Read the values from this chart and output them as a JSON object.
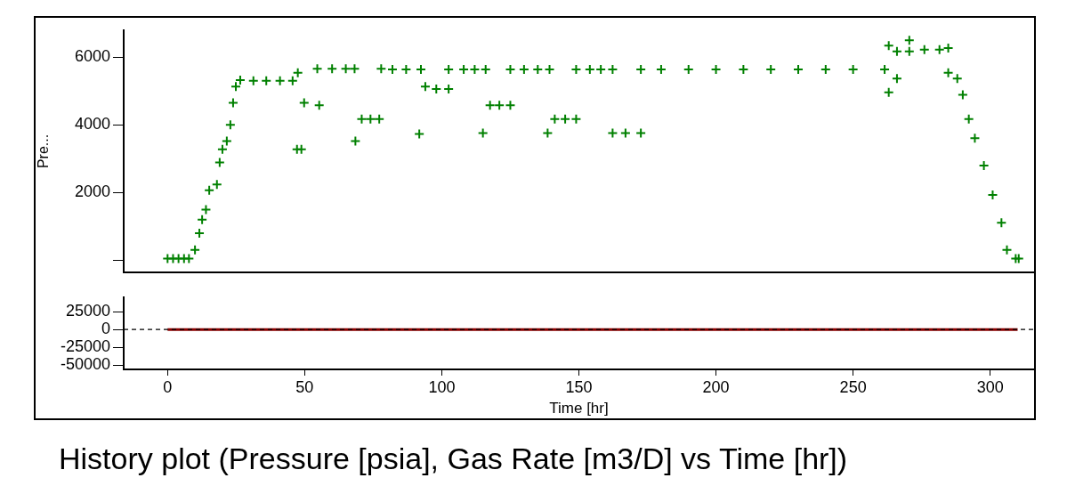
{
  "chart_data": [
    {
      "type": "scatter",
      "ylabel": "Pre...",
      "xlim": [
        -16,
        316
      ],
      "ylim": [
        -360,
        6800
      ],
      "yticks": [
        {
          "value": 0,
          "label": null
        },
        2000,
        4000,
        6000
      ],
      "tick_labels": "y",
      "grid": false,
      "legend": false,
      "marker": "cross",
      "series": [
        {
          "color": "#008000",
          "x": [
            0,
            2,
            4,
            6,
            7.8,
            10,
            11.6,
            12.6,
            14,
            15.2,
            18,
            19,
            20,
            21.6,
            22.9,
            23.9,
            24.9,
            26.5,
            31.3,
            36,
            41,
            45.6,
            47.5,
            47.2,
            48.8,
            49.8,
            55.3,
            54.6,
            60,
            65,
            68.2,
            68.5,
            70.8,
            74,
            77.2,
            77.9,
            82,
            87,
            92.4,
            91.8,
            94,
            98,
            102.5,
            102.5,
            108,
            112,
            116,
            115,
            117.6,
            121,
            125,
            125,
            130,
            135,
            139.3,
            138.6,
            141.2,
            145,
            149,
            149,
            154,
            158,
            162.3,
            162.3,
            167,
            172.6,
            172.6,
            180,
            190,
            200,
            210,
            220,
            230,
            240,
            250,
            261.5,
            263,
            263,
            266,
            266,
            270.5,
            270.5,
            276,
            281.5,
            284.7,
            284.7,
            288,
            290,
            292.2,
            294.4,
            297.7,
            300.9,
            304.1,
            306.1,
            309.3,
            310.4
          ],
          "values": [
            50,
            50,
            50,
            50,
            50,
            310,
            800,
            1200,
            1500,
            2070,
            2240,
            2890,
            3280,
            3520,
            4000,
            4650,
            5130,
            5320,
            5300,
            5300,
            5300,
            5300,
            5540,
            3280,
            3280,
            4650,
            4580,
            5660,
            5660,
            5660,
            5660,
            3520,
            4170,
            4170,
            4170,
            5660,
            5640,
            5640,
            5640,
            3730,
            5130,
            5060,
            5060,
            5640,
            5640,
            5640,
            5640,
            3760,
            4580,
            4580,
            4580,
            5640,
            5640,
            5640,
            5640,
            3760,
            4170,
            4170,
            4170,
            5640,
            5640,
            5640,
            5640,
            3760,
            3760,
            3760,
            5640,
            5640,
            5640,
            5640,
            5640,
            5640,
            5640,
            5640,
            5640,
            5640,
            6340,
            4960,
            6170,
            5370,
            6500,
            6170,
            6220,
            6220,
            6270,
            5540,
            5370,
            4890,
            4170,
            3610,
            2800,
            1930,
            1110,
            310,
            50,
            50
          ]
        }
      ]
    },
    {
      "type": "line",
      "title": "History plot (Pressure [psia], Gas Rate [m3/D] vs Time [hr])",
      "xlabel": "Time [hr]",
      "xlim": [
        -16,
        316
      ],
      "xticks": [
        0,
        50,
        100,
        150,
        200,
        250,
        300
      ],
      "ylim": [
        -56000,
        45500
      ],
      "yticks": [
        -50000,
        -25000,
        0,
        25000
      ],
      "grid": false,
      "legend": false,
      "marker": "none",
      "ref_lines": [
        {
          "axis": "y",
          "value": 0,
          "color": "#000000",
          "line_style": "dashed"
        }
      ],
      "series": [
        {
          "color": "#8b0000",
          "x": [
            0,
            310
          ],
          "values": [
            0,
            0
          ]
        }
      ]
    }
  ]
}
